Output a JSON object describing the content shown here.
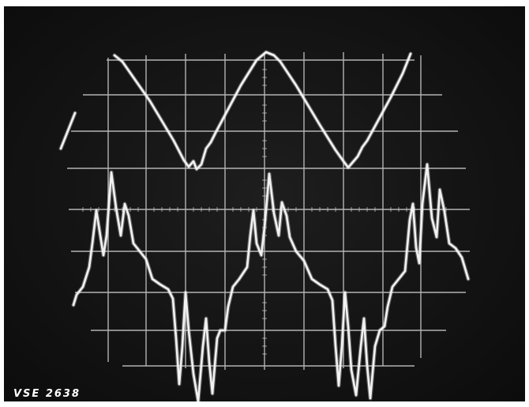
{
  "figure": {
    "plate_id": "VSE 2638",
    "background_color": "#141414",
    "trace_color": "#f2f2f2",
    "graticule_color": "#cfcfcf",
    "traces": [
      {
        "shape": "triangular periodic wave with small ripples at the troughs",
        "cycles_visible": 2.2
      },
      {
        "shape": "alternating bursts of sharp positive and negative spikes",
        "bursts_visible": 5
      }
    ]
  }
}
